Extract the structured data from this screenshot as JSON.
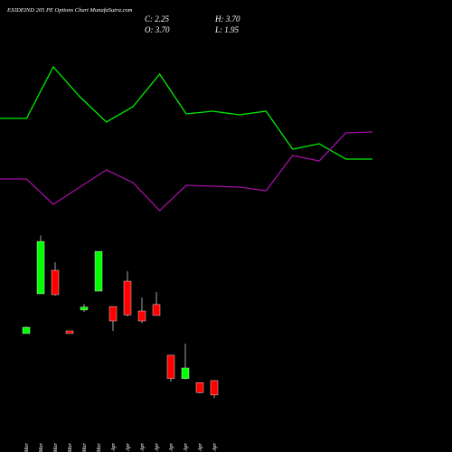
{
  "chart_data": [
    {
      "type": "line",
      "title": "EXIDEIND 205 PE Options Chart MunafaSutra.com",
      "ohlc_labels": [
        "C: 2.25",
        "H: 3.70",
        "O: 3.70",
        "L: 1.95"
      ],
      "ylim": [
        0,
        300
      ],
      "series": [
        {
          "color": "#00ee00",
          "values": [
            169,
            169,
            226,
            193,
            165,
            182,
            218,
            174,
            177,
            173,
            177,
            135,
            141,
            124,
            124
          ]
        },
        {
          "color": "#a010a0",
          "values": [
            102,
            102,
            74,
            93,
            112,
            98,
            67,
            95,
            94,
            93,
            89,
            128,
            122,
            153,
            154
          ]
        }
      ]
    },
    {
      "type": "candlestick",
      "categories": [
        "20 Mar",
        "21 Mar",
        "24 Mar",
        "25 Mar",
        "26 Mar",
        "27 Mar",
        "01 Apr",
        "02 Apr",
        "03 Apr",
        "04 Apr",
        "07 Apr",
        "08 Apr",
        "09 Apr",
        "11 Apr"
      ],
      "ylim": [
        1.06,
        19.25
      ],
      "up_color": "#00ff00",
      "down_color": "#ff0000",
      "open": [
        8.43,
        12.43,
        14.79,
        8.7,
        10.8,
        12.7,
        11.15,
        13.7,
        10.7,
        11.35,
        6.25,
        3.9,
        3.5,
        3.7
      ],
      "high": [
        9.15,
        18.3,
        15.6,
        8.7,
        11.4,
        16.7,
        11.15,
        14.7,
        12.05,
        12.6,
        6.25,
        7.4,
        3.5,
        3.7
      ],
      "low": [
        8.43,
        12.43,
        12.25,
        8.43,
        10.6,
        12.7,
        8.7,
        10.15,
        9.5,
        10.25,
        3.6,
        3.8,
        2.4,
        1.95
      ],
      "close": [
        9.06,
        17.7,
        12.34,
        8.43,
        11.1,
        16.7,
        9.7,
        10.3,
        9.7,
        10.25,
        3.9,
        4.97,
        2.5,
        2.25
      ]
    }
  ]
}
